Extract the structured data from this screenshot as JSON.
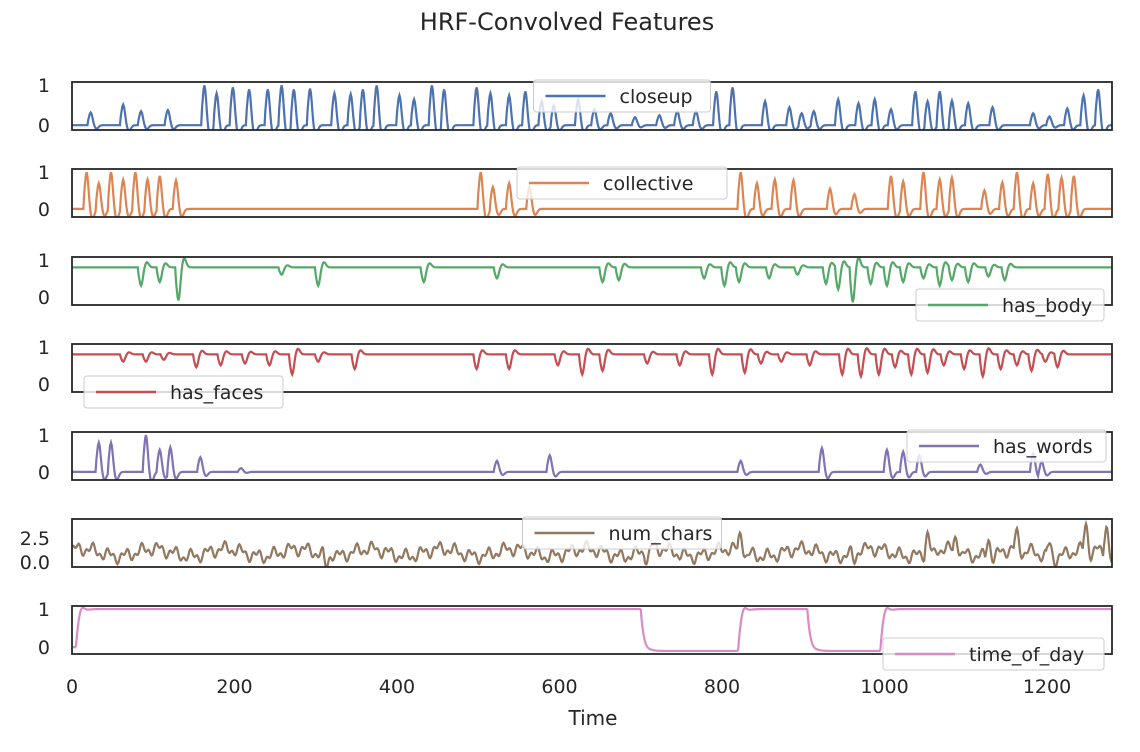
{
  "chart_data": {
    "type": "line",
    "title": "HRF-Convolved Features",
    "xlabel": "Time",
    "xlim": [
      0,
      1280
    ],
    "x_ticks": [
      0,
      200,
      400,
      600,
      800,
      1000,
      1200
    ],
    "grid": false,
    "panels": [
      {
        "name": "closeup",
        "color": "#4c72b0",
        "ylim": [
          -0.12,
          1.08
        ],
        "y_ticks": [
          {
            "v": 1,
            "label": "1"
          },
          {
            "v": 0,
            "label": "0"
          }
        ],
        "legend_position": "top-center",
        "baseline": 0,
        "events": [
          [
            20,
            0.32
          ],
          [
            60,
            0.52
          ],
          [
            82,
            0.35
          ],
          [
            115,
            0.38
          ],
          [
            160,
            1.0
          ],
          [
            175,
            0.8
          ],
          [
            195,
            0.95
          ],
          [
            215,
            0.9
          ],
          [
            238,
            0.9
          ],
          [
            255,
            1.0
          ],
          [
            270,
            0.9
          ],
          [
            290,
            0.92
          ],
          [
            320,
            0.8
          ],
          [
            340,
            0.78
          ],
          [
            355,
            0.9
          ],
          [
            372,
            1.0
          ],
          [
            400,
            0.75
          ],
          [
            418,
            0.65
          ],
          [
            440,
            1.0
          ],
          [
            455,
            0.9
          ],
          [
            495,
            0.95
          ],
          [
            512,
            0.8
          ],
          [
            535,
            0.75
          ],
          [
            555,
            0.85
          ],
          [
            575,
            0.6
          ],
          [
            590,
            0.5
          ],
          [
            620,
            0.65
          ],
          [
            640,
            0.4
          ],
          [
            660,
            0.3
          ],
          [
            690,
            0.2
          ],
          [
            720,
            0.25
          ],
          [
            742,
            0.35
          ],
          [
            765,
            0.35
          ],
          [
            790,
            0.85
          ],
          [
            810,
            0.95
          ],
          [
            850,
            0.6
          ],
          [
            880,
            0.45
          ],
          [
            895,
            0.3
          ],
          [
            910,
            0.35
          ],
          [
            940,
            0.65
          ],
          [
            965,
            0.55
          ],
          [
            985,
            0.65
          ],
          [
            1005,
            0.4
          ],
          [
            1035,
            0.85
          ],
          [
            1050,
            0.6
          ],
          [
            1065,
            0.85
          ],
          [
            1080,
            0.62
          ],
          [
            1100,
            0.55
          ],
          [
            1130,
            0.45
          ],
          [
            1180,
            0.3
          ],
          [
            1200,
            0.22
          ],
          [
            1222,
            0.42
          ],
          [
            1242,
            0.75
          ],
          [
            1260,
            0.9
          ]
        ]
      },
      {
        "name": "collective",
        "color": "#dd8452",
        "ylim": [
          -0.22,
          1.08
        ],
        "y_ticks": [
          {
            "v": 1,
            "label": "1"
          },
          {
            "v": 0,
            "label": "0"
          }
        ],
        "legend_position": "top-center",
        "baseline": 0,
        "events": [
          [
            15,
            1.0
          ],
          [
            30,
            0.7
          ],
          [
            45,
            1.0
          ],
          [
            60,
            0.8
          ],
          [
            75,
            1.0
          ],
          [
            90,
            0.8
          ],
          [
            105,
            0.9
          ],
          [
            125,
            0.78
          ],
          [
            500,
            1.0
          ],
          [
            515,
            0.6
          ],
          [
            535,
            0.7
          ],
          [
            560,
            0.6
          ],
          [
            820,
            1.0
          ],
          [
            840,
            0.7
          ],
          [
            862,
            0.8
          ],
          [
            885,
            0.78
          ],
          [
            930,
            0.55
          ],
          [
            960,
            0.4
          ],
          [
            1005,
            0.9
          ],
          [
            1020,
            0.75
          ],
          [
            1045,
            1.0
          ],
          [
            1065,
            0.8
          ],
          [
            1080,
            0.85
          ],
          [
            1120,
            0.5
          ],
          [
            1142,
            0.72
          ],
          [
            1160,
            1.0
          ],
          [
            1180,
            0.7
          ],
          [
            1198,
            0.95
          ],
          [
            1215,
            0.85
          ],
          [
            1230,
            0.9
          ]
        ]
      },
      {
        "name": "has_body",
        "color": "#55a868",
        "ylim": [
          -0.22,
          1.08
        ],
        "y_ticks": [
          {
            "v": 1,
            "label": "1"
          },
          {
            "v": 0,
            "label": "0"
          }
        ],
        "legend_position": "lower-right",
        "baseline": 0.8,
        "events": [
          [
            82,
            -0.5
          ],
          [
            105,
            -0.4
          ],
          [
            128,
            -0.9
          ],
          [
            255,
            -0.2
          ],
          [
            300,
            -0.5
          ],
          [
            430,
            -0.4
          ],
          [
            520,
            -0.3
          ],
          [
            650,
            -0.4
          ],
          [
            670,
            -0.35
          ],
          [
            775,
            -0.3
          ],
          [
            800,
            -0.5
          ],
          [
            818,
            -0.4
          ],
          [
            855,
            -0.3
          ],
          [
            890,
            -0.2
          ],
          [
            925,
            -0.45
          ],
          [
            940,
            -0.6
          ],
          [
            958,
            -0.95
          ],
          [
            980,
            -0.45
          ],
          [
            1000,
            -0.5
          ],
          [
            1020,
            -0.4
          ],
          [
            1045,
            -0.3
          ],
          [
            1065,
            -0.5
          ],
          [
            1080,
            -0.35
          ],
          [
            1100,
            -0.4
          ],
          [
            1125,
            -0.25
          ],
          [
            1145,
            -0.35
          ]
        ]
      },
      {
        "name": "has_faces",
        "color": "#c44e52",
        "ylim": [
          -0.22,
          1.08
        ],
        "y_ticks": [
          {
            "v": 1,
            "label": "1"
          },
          {
            "v": 0,
            "label": "0"
          }
        ],
        "legend_position": "lower-left",
        "baseline": 0.8,
        "events": [
          [
            60,
            -0.2
          ],
          [
            88,
            -0.2
          ],
          [
            110,
            -0.15
          ],
          [
            150,
            -0.35
          ],
          [
            180,
            -0.3
          ],
          [
            210,
            -0.25
          ],
          [
            240,
            -0.3
          ],
          [
            268,
            -0.55
          ],
          [
            300,
            -0.2
          ],
          [
            345,
            -0.4
          ],
          [
            495,
            -0.4
          ],
          [
            535,
            -0.4
          ],
          [
            595,
            -0.3
          ],
          [
            625,
            -0.55
          ],
          [
            650,
            -0.45
          ],
          [
            705,
            -0.25
          ],
          [
            745,
            -0.3
          ],
          [
            785,
            -0.55
          ],
          [
            825,
            -0.5
          ],
          [
            845,
            -0.25
          ],
          [
            870,
            -0.2
          ],
          [
            905,
            -0.3
          ],
          [
            945,
            -0.55
          ],
          [
            968,
            -0.6
          ],
          [
            990,
            -0.55
          ],
          [
            1010,
            -0.35
          ],
          [
            1030,
            -0.55
          ],
          [
            1050,
            -0.5
          ],
          [
            1070,
            -0.3
          ],
          [
            1095,
            -0.4
          ],
          [
            1118,
            -0.6
          ],
          [
            1140,
            -0.4
          ],
          [
            1160,
            -0.3
          ],
          [
            1178,
            -0.45
          ],
          [
            1195,
            -0.2
          ],
          [
            1210,
            -0.35
          ]
        ]
      },
      {
        "name": "has_words",
        "color": "#8172b3",
        "ylim": [
          -0.22,
          1.08
        ],
        "y_ticks": [
          {
            "v": 1,
            "label": "1"
          },
          {
            "v": 0,
            "label": "0"
          }
        ],
        "legend_position": "top-right",
        "baseline": 0,
        "events": [
          [
            30,
            0.8
          ],
          [
            45,
            0.8
          ],
          [
            88,
            1.0
          ],
          [
            105,
            0.6
          ],
          [
            118,
            0.68
          ],
          [
            155,
            0.4
          ],
          [
            205,
            0.1
          ],
          [
            520,
            0.3
          ],
          [
            585,
            0.45
          ],
          [
            820,
            0.3
          ],
          [
            920,
            0.65
          ],
          [
            1000,
            0.6
          ],
          [
            1020,
            0.55
          ],
          [
            1040,
            0.45
          ],
          [
            1115,
            0.2
          ],
          [
            1180,
            0.5
          ],
          [
            1190,
            0.35
          ]
        ]
      },
      {
        "name": "num_chars",
        "color": "#937860",
        "ylim": [
          -0.5,
          4.5
        ],
        "y_ticks": [
          {
            "v": 2.5,
            "label": "2.5"
          },
          {
            "v": 0,
            "label": "0.0"
          }
        ],
        "legend_position": "top-center",
        "baseline": 1.0,
        "noise_amp": 0.8,
        "noise_freq": 0.31,
        "events": [
          [
            310,
            -1.2
          ],
          [
            705,
            -1.0
          ],
          [
            820,
            1.9
          ],
          [
            960,
            -0.8
          ],
          [
            1050,
            2.0
          ],
          [
            1085,
            1.6
          ],
          [
            1125,
            1.8
          ],
          [
            1160,
            1.5
          ],
          [
            1200,
            1.2
          ],
          [
            1245,
            2.6
          ],
          [
            1270,
            3.0
          ]
        ]
      },
      {
        "name": "time_of_day",
        "color": "#da8bc3",
        "ylim": [
          -0.18,
          1.08
        ],
        "y_ticks": [
          {
            "v": 1,
            "label": "1"
          },
          {
            "v": 0,
            "label": "0"
          }
        ],
        "legend_position": "lower-right",
        "baseline": 0.8,
        "segments": [
          [
            0,
            0
          ],
          [
            5,
            1.0
          ],
          [
            700,
            -0.1
          ],
          [
            820,
            1.0
          ],
          [
            905,
            -0.1
          ],
          [
            995,
            1.0
          ]
        ]
      }
    ]
  }
}
